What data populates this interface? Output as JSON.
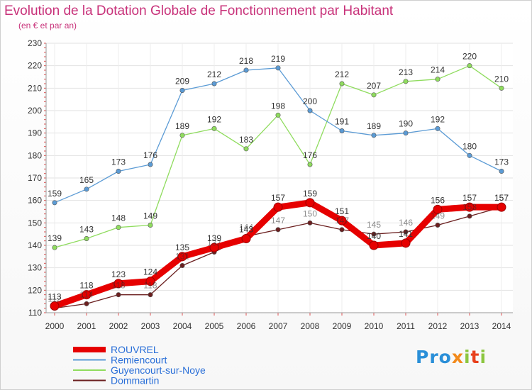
{
  "title": "Evolution de la Dotation Globale de Fonctionnement par Habitant",
  "subtitle": "(en € et par an)",
  "logo_text": "Proxiti",
  "chart_data": {
    "type": "line",
    "title": "Evolution de la Dotation Globale de Fonctionnement par Habitant",
    "ylabel": "(en € et par an)",
    "xlabel": "",
    "ylim": [
      110,
      230
    ],
    "yticks": [
      110,
      120,
      130,
      140,
      150,
      160,
      170,
      180,
      190,
      200,
      210,
      220,
      230
    ],
    "categories": [
      "2000",
      "2001",
      "2002",
      "2003",
      "2004",
      "2005",
      "2006",
      "2007",
      "2008",
      "2009",
      "2010",
      "2011",
      "2012",
      "2013",
      "2014"
    ],
    "grid": true,
    "legend": "bottom-left",
    "series": [
      {
        "name": "ROUVREL",
        "color": "#e60000",
        "values": [
          113,
          118,
          123,
          124,
          135,
          139,
          143,
          157,
          159,
          151,
          140,
          141,
          156,
          157,
          157
        ]
      },
      {
        "name": "Remiencourt",
        "color": "#5b9bd5",
        "values": [
          159,
          165,
          173,
          176,
          209,
          212,
          218,
          219,
          200,
          191,
          189,
          190,
          192,
          180,
          173
        ]
      },
      {
        "name": "Guyencourt-sur-Noye",
        "color": "#8fdc5e",
        "values": [
          139,
          143,
          148,
          149,
          189,
          192,
          183,
          198,
          176,
          212,
          207,
          213,
          214,
          220,
          210
        ]
      },
      {
        "name": "Dommartin",
        "color": "#6b1f1f",
        "values": [
          112,
          114,
          118,
          118,
          131,
          137,
          144,
          147,
          150,
          147,
          145,
          146,
          149,
          153,
          157
        ]
      }
    ]
  }
}
